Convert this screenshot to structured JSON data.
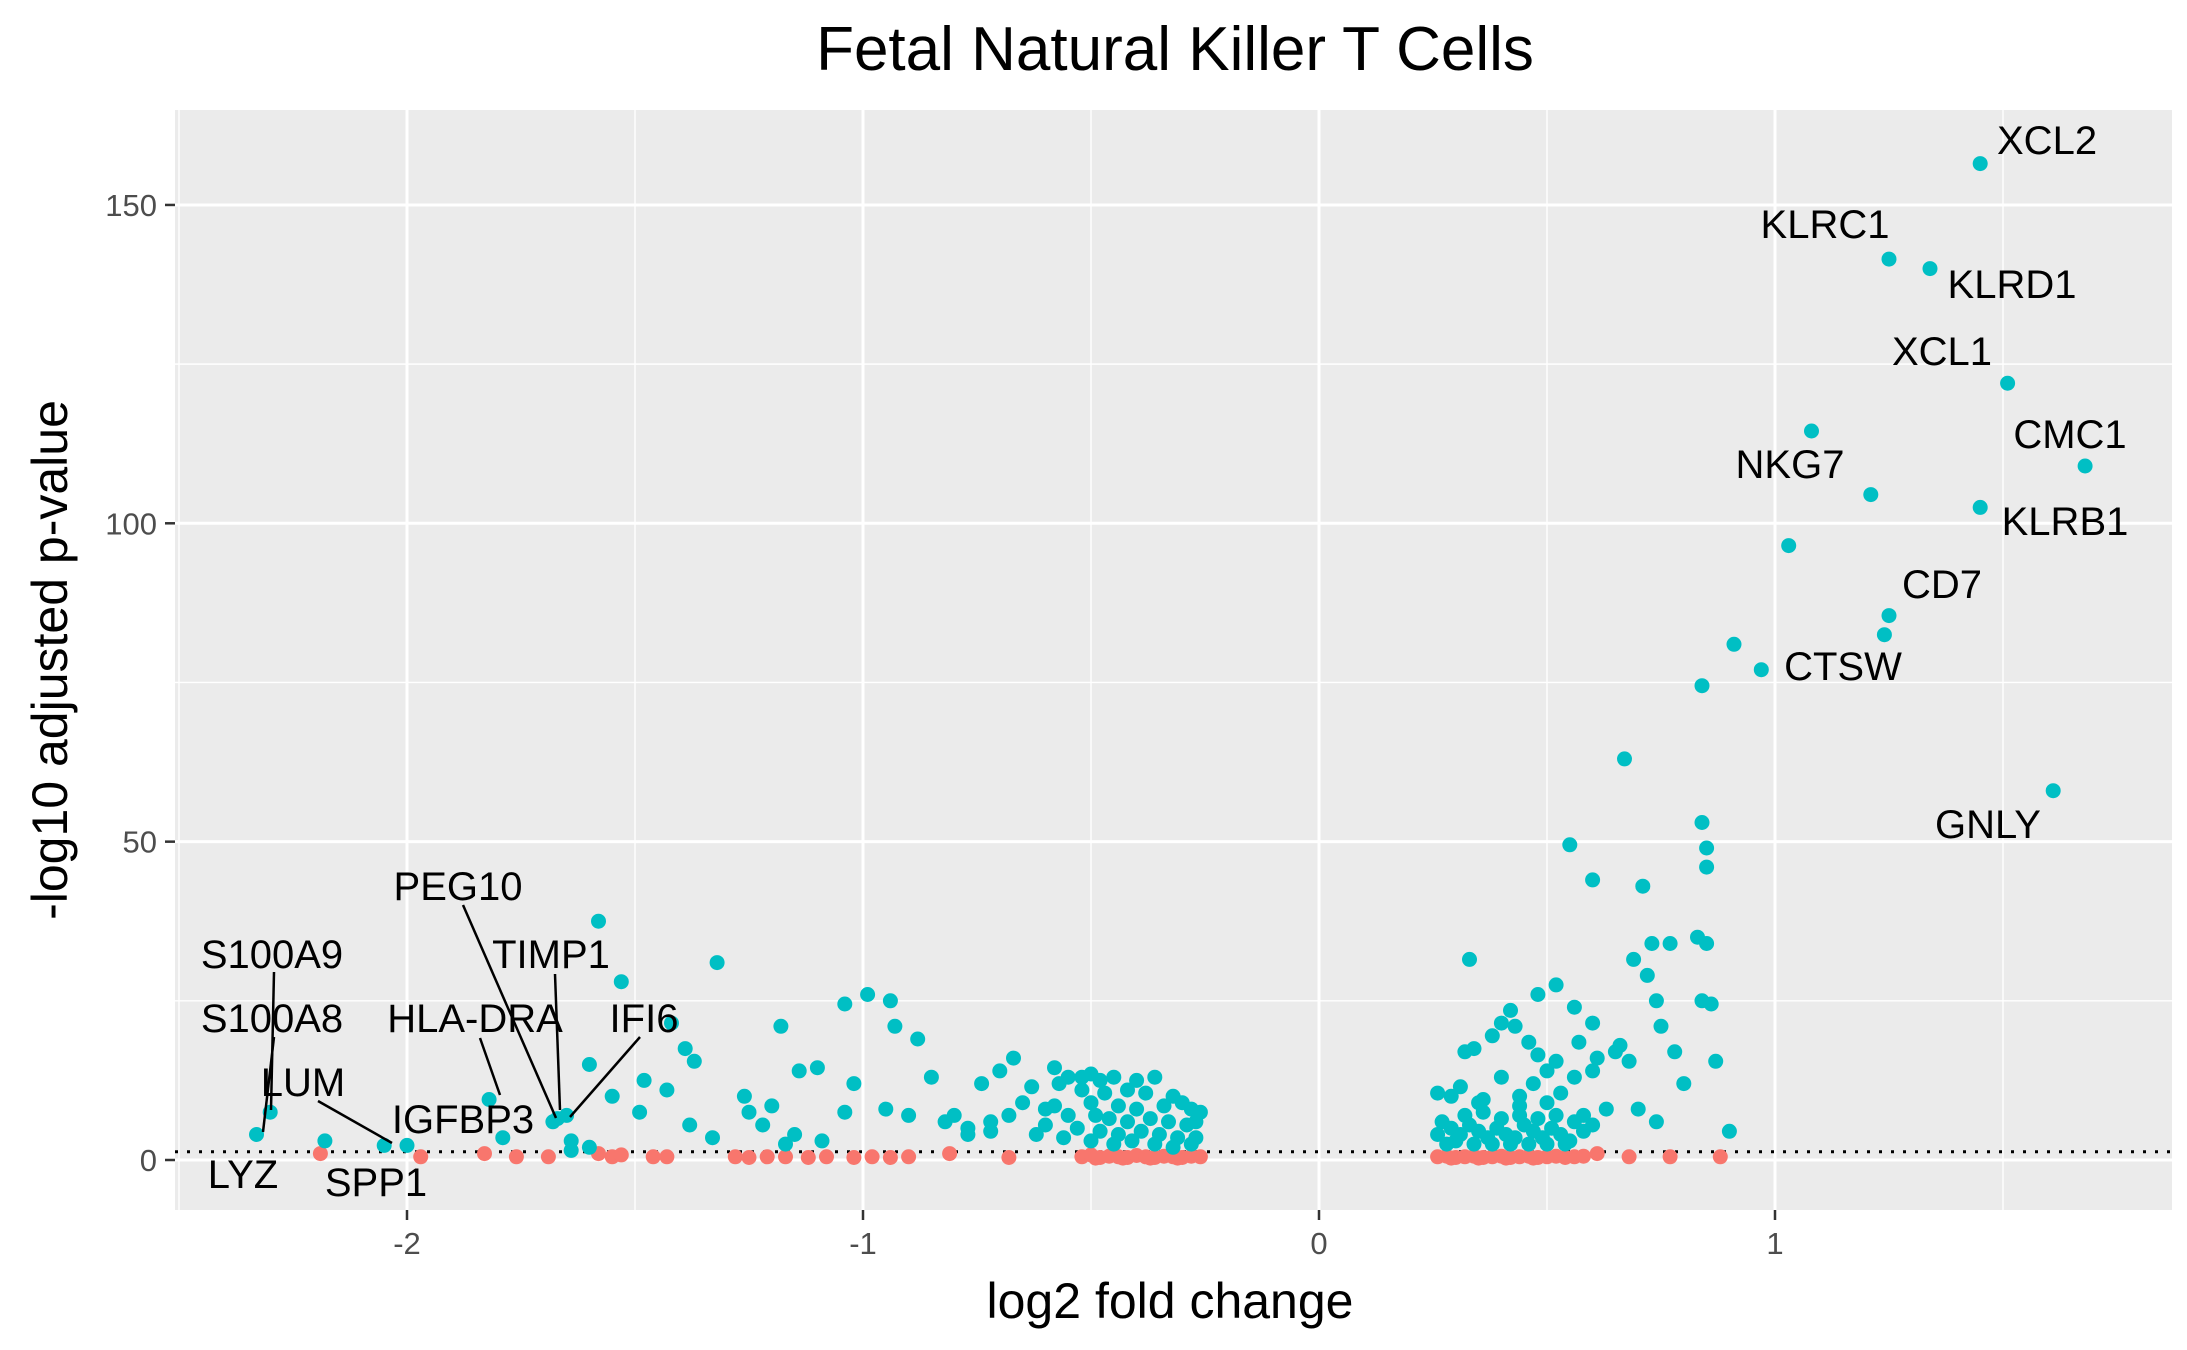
{
  "chart_data": {
    "type": "scatter",
    "title": "Fetal Natural Killer T Cells",
    "xlabel": "log2 fold change",
    "ylabel": "-log10 adjusted p-value",
    "xlim": [
      -2.5,
      1.88
    ],
    "ylim": [
      -8,
      165
    ],
    "x_ticks": [
      {
        "value": -2,
        "label": "-2"
      },
      {
        "value": -1,
        "label": "-1"
      },
      {
        "value": 0,
        "label": "0"
      },
      {
        "value": 1,
        "label": "1"
      }
    ],
    "y_ticks": [
      {
        "value": 0,
        "label": "0"
      },
      {
        "value": 50,
        "label": "50"
      },
      {
        "value": 100,
        "label": "100"
      },
      {
        "value": 150,
        "label": "150"
      }
    ],
    "grid": true,
    "legend": "none",
    "threshold_line": 1.3,
    "colors": {
      "background": "#ebebeb",
      "significant": "#00bfc4",
      "not_significant": "#f8766d"
    },
    "labeled_points": [
      {
        "gene": "XCL2",
        "x": 1.45,
        "y": 156.5
      },
      {
        "gene": "KLRC1",
        "x": 1.25,
        "y": 141.5
      },
      {
        "gene": "KLRD1",
        "x": 1.34,
        "y": 140.0
      },
      {
        "gene": "XCL1",
        "x": 1.51,
        "y": 122.0
      },
      {
        "gene": "CMC1",
        "x": 1.68,
        "y": 109.0
      },
      {
        "gene": "NKG7",
        "x": 1.08,
        "y": 114.5
      },
      {
        "gene": "KLRB1",
        "x": 1.45,
        "y": 102.5
      },
      {
        "gene": "CD7",
        "x": 1.25,
        "y": 85.5
      },
      {
        "gene": "CTSW",
        "x": 0.97,
        "y": 77.0
      },
      {
        "gene": "GNLY",
        "x": 1.61,
        "y": 58.0
      },
      {
        "gene": "S100A9",
        "x": -2.3,
        "y": 7.5
      },
      {
        "gene": "S100A8",
        "x": -2.3,
        "y": 7.5
      },
      {
        "gene": "LYZ",
        "x": -2.33,
        "y": 4.0
      },
      {
        "gene": "LUM",
        "x": -2.05,
        "y": 2.3
      },
      {
        "gene": "SPP1",
        "x": -2.0,
        "y": 2.3
      },
      {
        "gene": "IGFBP3",
        "x": -1.82,
        "y": 9.5
      },
      {
        "gene": "HLA-DRA",
        "x": -1.82,
        "y": 9.5
      },
      {
        "gene": "PEG10",
        "x": -1.68,
        "y": 6.0
      },
      {
        "gene": "TIMP1",
        "x": -1.67,
        "y": 6.5
      },
      {
        "gene": "IFI6",
        "x": -1.65,
        "y": 7.0
      }
    ],
    "series": [
      {
        "color": "#00bfc4",
        "points": [
          [
            1.45,
            156.5
          ],
          [
            1.25,
            141.5
          ],
          [
            1.34,
            140.0
          ],
          [
            1.51,
            122.0
          ],
          [
            1.68,
            109.0
          ],
          [
            1.08,
            114.5
          ],
          [
            1.21,
            104.5
          ],
          [
            1.45,
            102.5
          ],
          [
            1.03,
            96.5
          ],
          [
            1.25,
            85.5
          ],
          [
            1.24,
            82.5
          ],
          [
            0.91,
            81.0
          ],
          [
            0.97,
            77.0
          ],
          [
            0.84,
            74.5
          ],
          [
            1.61,
            58.0
          ],
          [
            0.67,
            63.0
          ],
          [
            0.84,
            53.0
          ],
          [
            0.85,
            49.0
          ],
          [
            0.55,
            49.5
          ],
          [
            0.85,
            46.0
          ],
          [
            0.6,
            44.0
          ],
          [
            0.71,
            43.0
          ],
          [
            0.33,
            31.5
          ],
          [
            0.69,
            31.5
          ],
          [
            0.85,
            34.0
          ],
          [
            0.83,
            35.0
          ],
          [
            0.73,
            34.0
          ],
          [
            0.77,
            34.0
          ],
          [
            0.72,
            29.0
          ],
          [
            0.52,
            27.5
          ],
          [
            0.48,
            26.0
          ],
          [
            0.56,
            24.0
          ],
          [
            0.42,
            23.5
          ],
          [
            0.74,
            25.0
          ],
          [
            0.84,
            25.0
          ],
          [
            0.86,
            24.5
          ],
          [
            0.4,
            21.5
          ],
          [
            0.43,
            21.0
          ],
          [
            0.6,
            21.5
          ],
          [
            0.75,
            21.0
          ],
          [
            0.38,
            19.5
          ],
          [
            0.46,
            18.5
          ],
          [
            0.57,
            18.5
          ],
          [
            0.65,
            17.0
          ],
          [
            0.78,
            17.0
          ],
          [
            0.32,
            17.0
          ],
          [
            0.34,
            17.5
          ],
          [
            0.66,
            18.0
          ],
          [
            0.48,
            16.5
          ],
          [
            0.61,
            16.0
          ],
          [
            0.68,
            15.5
          ],
          [
            0.52,
            15.5
          ],
          [
            0.5,
            14.0
          ],
          [
            0.6,
            14.0
          ],
          [
            0.56,
            13.0
          ],
          [
            0.8,
            12.0
          ],
          [
            0.87,
            15.5
          ],
          [
            0.4,
            13.0
          ],
          [
            0.47,
            12.0
          ],
          [
            0.31,
            11.5
          ],
          [
            0.26,
            10.5
          ],
          [
            0.29,
            10.0
          ],
          [
            0.53,
            10.5
          ],
          [
            0.35,
            9.0
          ],
          [
            0.44,
            8.5
          ],
          [
            0.63,
            8.0
          ],
          [
            0.7,
            8.0
          ],
          [
            0.58,
            7.0
          ],
          [
            0.9,
            4.5
          ],
          [
            0.74,
            6.0
          ],
          [
            -1.58,
            37.5
          ],
          [
            -1.32,
            31.0
          ],
          [
            -1.53,
            28.0
          ],
          [
            -0.99,
            26.0
          ],
          [
            -1.04,
            24.5
          ],
          [
            -0.94,
            25.0
          ],
          [
            -0.93,
            21.0
          ],
          [
            -1.42,
            21.5
          ],
          [
            -1.18,
            21.0
          ],
          [
            -0.88,
            19.0
          ],
          [
            -1.39,
            17.5
          ],
          [
            -0.67,
            16.0
          ],
          [
            -0.58,
            14.5
          ],
          [
            -1.37,
            15.5
          ],
          [
            -1.6,
            15.0
          ],
          [
            -1.14,
            14.0
          ],
          [
            -1.1,
            14.5
          ],
          [
            -0.7,
            14.0
          ],
          [
            -0.85,
            13.0
          ],
          [
            -1.48,
            12.5
          ],
          [
            -1.02,
            12.0
          ],
          [
            -0.48,
            12.5
          ],
          [
            -1.55,
            10.0
          ],
          [
            -1.43,
            11.0
          ],
          [
            -1.26,
            10.0
          ],
          [
            -0.74,
            12.0
          ],
          [
            -1.2,
            8.5
          ],
          [
            -1.04,
            7.5
          ],
          [
            -0.95,
            8.0
          ],
          [
            -0.9,
            7.0
          ],
          [
            -1.49,
            7.5
          ],
          [
            -1.38,
            5.5
          ],
          [
            -1.25,
            7.5
          ],
          [
            -1.22,
            5.5
          ],
          [
            -1.15,
            4.0
          ],
          [
            -1.33,
            3.5
          ],
          [
            -0.82,
            6.0
          ],
          [
            -0.6,
            8.0
          ],
          [
            -0.77,
            5.0
          ],
          [
            -0.72,
            4.5
          ],
          [
            -1.09,
            3.0
          ],
          [
            -1.17,
            2.5
          ],
          [
            -1.6,
            2.0
          ],
          [
            -1.64,
            3.0
          ],
          [
            -1.79,
            3.5
          ],
          [
            -2.18,
            3.0
          ],
          [
            -2.05,
            2.3
          ],
          [
            -2.0,
            2.3
          ],
          [
            -2.33,
            4.0
          ],
          [
            -2.3,
            7.5
          ],
          [
            -1.82,
            9.5
          ],
          [
            -1.68,
            6.0
          ],
          [
            -1.67,
            6.5
          ],
          [
            -1.65,
            7.0
          ],
          [
            -1.64,
            1.5
          ],
          [
            -0.55,
            13.0
          ],
          [
            -0.5,
            13.5
          ],
          [
            -0.45,
            13.0
          ],
          [
            -0.4,
            12.5
          ],
          [
            -0.36,
            13.0
          ],
          [
            -0.52,
            11.0
          ],
          [
            -0.47,
            10.5
          ],
          [
            -0.42,
            11.0
          ],
          [
            -0.38,
            10.5
          ],
          [
            -0.32,
            10.0
          ],
          [
            -0.3,
            9.0
          ],
          [
            -0.5,
            9.0
          ],
          [
            -0.44,
            8.5
          ],
          [
            -0.4,
            8.0
          ],
          [
            -0.34,
            8.5
          ],
          [
            -0.28,
            8.0
          ],
          [
            -0.26,
            7.5
          ],
          [
            -0.58,
            8.5
          ],
          [
            -0.55,
            7.0
          ],
          [
            -0.49,
            7.0
          ],
          [
            -0.46,
            6.5
          ],
          [
            -0.42,
            6.0
          ],
          [
            -0.37,
            6.5
          ],
          [
            -0.33,
            6.0
          ],
          [
            -0.29,
            5.5
          ],
          [
            -0.27,
            6.0
          ],
          [
            -0.6,
            5.5
          ],
          [
            -0.53,
            5.0
          ],
          [
            -0.48,
            4.5
          ],
          [
            -0.44,
            4.0
          ],
          [
            -0.39,
            4.5
          ],
          [
            -0.35,
            4.0
          ],
          [
            -0.31,
            3.5
          ],
          [
            -0.27,
            3.5
          ],
          [
            -0.62,
            4.0
          ],
          [
            -0.56,
            3.5
          ],
          [
            -0.5,
            3.0
          ],
          [
            -0.45,
            2.5
          ],
          [
            -0.41,
            3.0
          ],
          [
            -0.36,
            2.5
          ],
          [
            -0.32,
            2.0
          ],
          [
            -0.28,
            2.5
          ],
          [
            -0.65,
            9.0
          ],
          [
            -0.68,
            7.0
          ],
          [
            -0.72,
            6.0
          ],
          [
            -0.77,
            4.0
          ],
          [
            -0.8,
            7.0
          ],
          [
            -0.63,
            11.5
          ],
          [
            -0.57,
            12.0
          ],
          [
            -0.52,
            13.0
          ],
          [
            0.27,
            6.0
          ],
          [
            0.29,
            5.0
          ],
          [
            0.31,
            4.0
          ],
          [
            0.33,
            5.5
          ],
          [
            0.35,
            4.5
          ],
          [
            0.37,
            3.5
          ],
          [
            0.39,
            5.0
          ],
          [
            0.41,
            4.0
          ],
          [
            0.43,
            3.5
          ],
          [
            0.45,
            5.5
          ],
          [
            0.47,
            4.5
          ],
          [
            0.49,
            3.5
          ],
          [
            0.51,
            5.0
          ],
          [
            0.53,
            4.0
          ],
          [
            0.55,
            3.0
          ],
          [
            0.28,
            2.5
          ],
          [
            0.3,
            3.0
          ],
          [
            0.34,
            2.5
          ],
          [
            0.38,
            2.5
          ],
          [
            0.42,
            2.5
          ],
          [
            0.46,
            2.5
          ],
          [
            0.5,
            2.5
          ],
          [
            0.54,
            2.5
          ],
          [
            0.32,
            7.0
          ],
          [
            0.36,
            7.5
          ],
          [
            0.4,
            6.5
          ],
          [
            0.44,
            7.0
          ],
          [
            0.48,
            6.5
          ],
          [
            0.52,
            7.0
          ],
          [
            0.56,
            6.0
          ],
          [
            0.58,
            4.5
          ],
          [
            0.6,
            5.5
          ],
          [
            0.26,
            4.0
          ],
          [
            0.36,
            9.5
          ],
          [
            0.44,
            10.0
          ],
          [
            0.5,
            9.0
          ]
        ]
      },
      {
        "color": "#f8766d",
        "points": [
          [
            -2.19,
            1.0
          ],
          [
            -1.97,
            0.5
          ],
          [
            -1.83,
            1.0
          ],
          [
            -1.76,
            0.5
          ],
          [
            -1.69,
            0.5
          ],
          [
            -1.58,
            1.0
          ],
          [
            -1.55,
            0.5
          ],
          [
            -1.53,
            0.8
          ],
          [
            -1.46,
            0.5
          ],
          [
            -1.43,
            0.5
          ],
          [
            -1.28,
            0.5
          ],
          [
            -1.25,
            0.4
          ],
          [
            -1.21,
            0.5
          ],
          [
            -1.17,
            0.5
          ],
          [
            -1.12,
            0.4
          ],
          [
            -1.08,
            0.5
          ],
          [
            -1.02,
            0.4
          ],
          [
            -0.98,
            0.5
          ],
          [
            -0.94,
            0.4
          ],
          [
            -0.9,
            0.5
          ],
          [
            -0.81,
            1.0
          ],
          [
            -0.68,
            0.4
          ],
          [
            -0.52,
            0.5
          ],
          [
            -0.5,
            0.8
          ],
          [
            -0.48,
            0.4
          ],
          [
            -0.46,
            0.6
          ],
          [
            -0.44,
            0.5
          ],
          [
            -0.42,
            0.4
          ],
          [
            -0.4,
            0.7
          ],
          [
            -0.38,
            0.5
          ],
          [
            -0.36,
            0.4
          ],
          [
            -0.34,
            0.6
          ],
          [
            -0.32,
            0.5
          ],
          [
            -0.3,
            0.4
          ],
          [
            -0.28,
            0.6
          ],
          [
            -0.26,
            0.5
          ],
          [
            -0.49,
            0.3
          ],
          [
            -0.43,
            0.3
          ],
          [
            -0.37,
            0.3
          ],
          [
            -0.31,
            0.3
          ],
          [
            0.26,
            0.5
          ],
          [
            0.28,
            0.6
          ],
          [
            0.3,
            0.4
          ],
          [
            0.32,
            0.5
          ],
          [
            0.34,
            0.6
          ],
          [
            0.36,
            0.4
          ],
          [
            0.38,
            0.5
          ],
          [
            0.4,
            0.6
          ],
          [
            0.42,
            0.4
          ],
          [
            0.44,
            0.5
          ],
          [
            0.46,
            0.6
          ],
          [
            0.48,
            0.4
          ],
          [
            0.5,
            0.5
          ],
          [
            0.52,
            0.6
          ],
          [
            0.54,
            0.4
          ],
          [
            0.56,
            0.5
          ],
          [
            0.58,
            0.6
          ],
          [
            0.61,
            1.0
          ],
          [
            0.68,
            0.5
          ],
          [
            0.77,
            0.5
          ],
          [
            0.88,
            0.5
          ],
          [
            0.29,
            0.3
          ],
          [
            0.35,
            0.3
          ],
          [
            0.41,
            0.3
          ],
          [
            0.47,
            0.3
          ]
        ]
      }
    ]
  }
}
